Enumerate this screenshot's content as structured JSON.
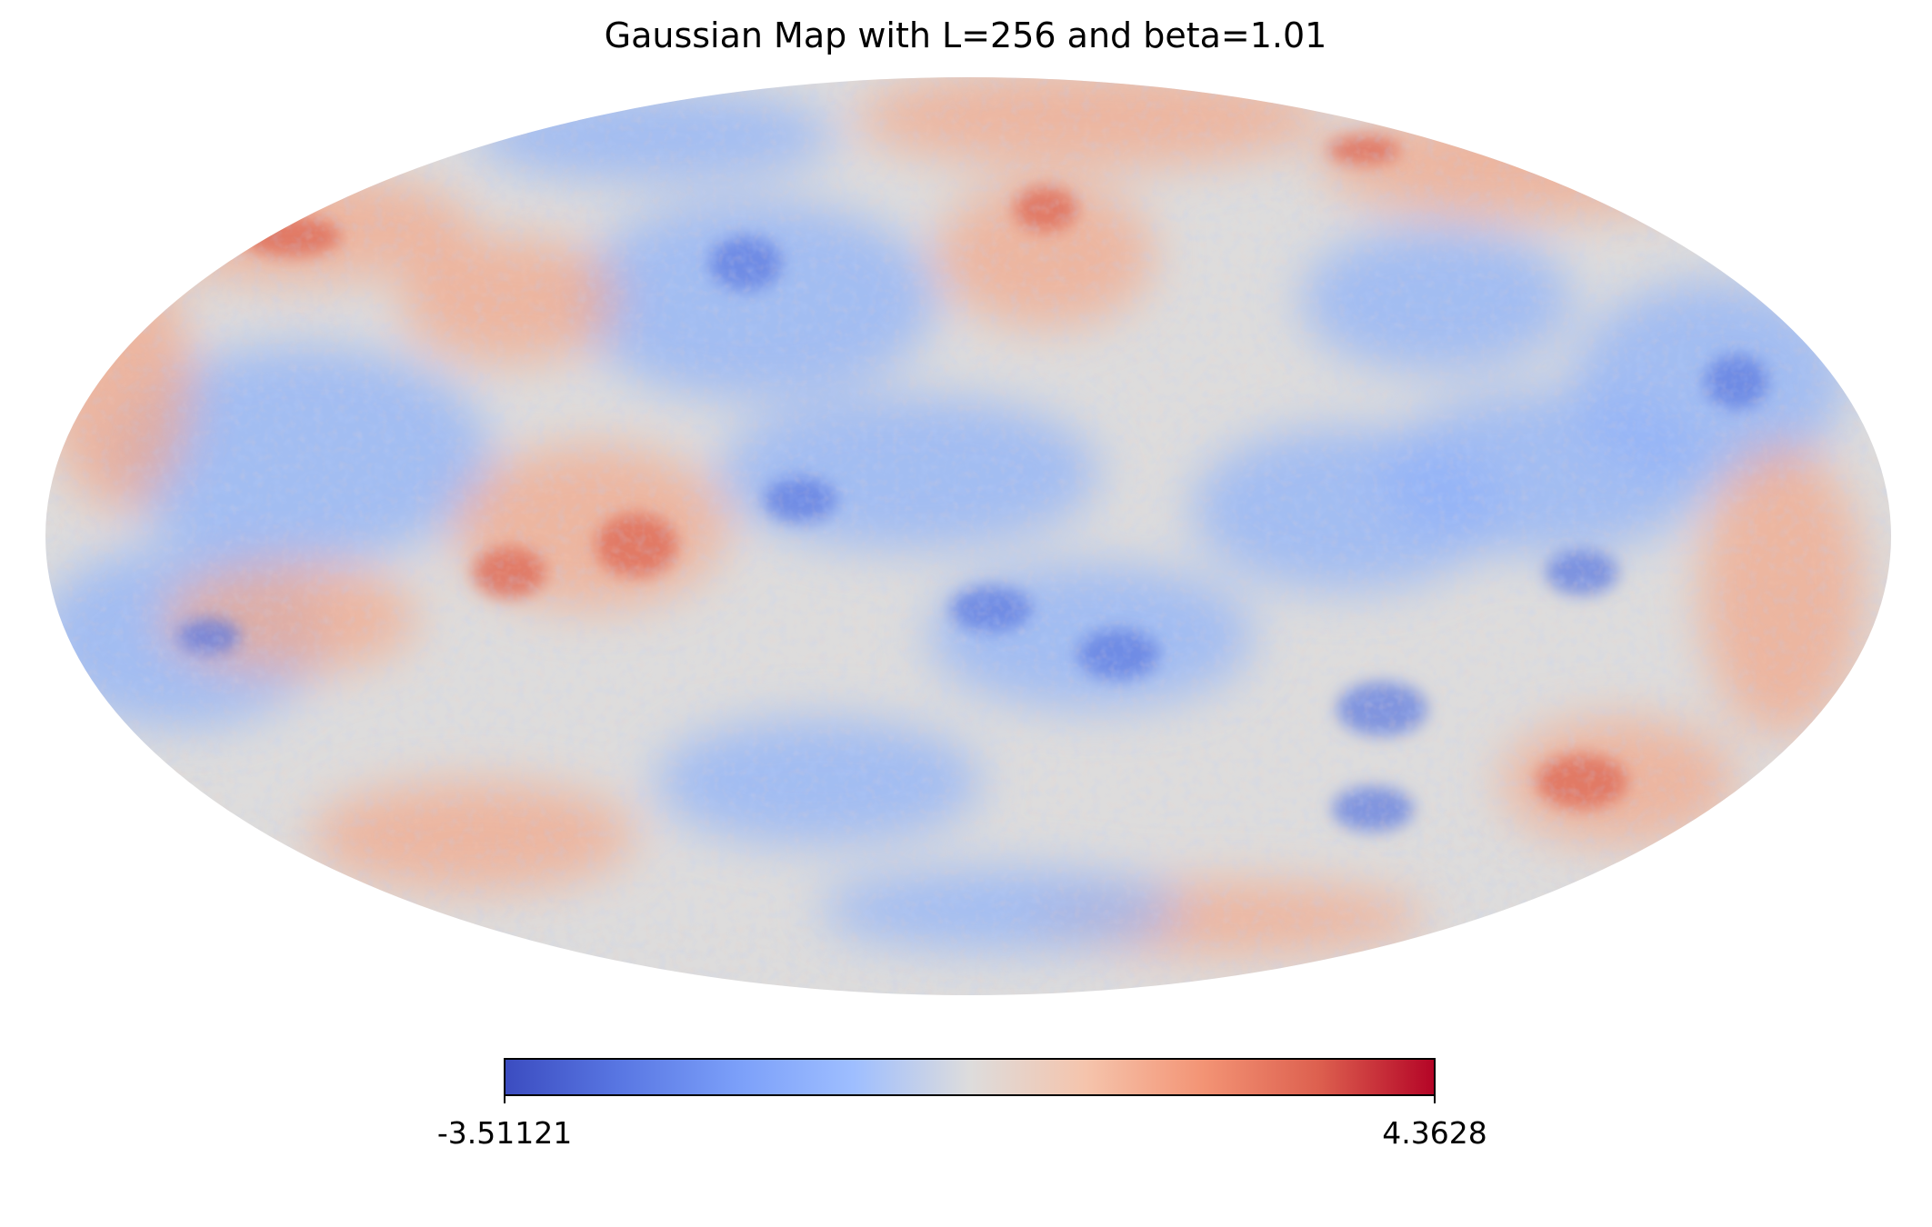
{
  "chart_data": {
    "type": "heatmap",
    "projection": "mollweide",
    "title": "Gaussian Map with L=256 and beta=1.01",
    "colormap": "coolwarm",
    "colorbar": {
      "orientation": "horizontal",
      "min": -3.51121,
      "max": 4.3628,
      "min_label": "-3.51121",
      "max_label": "4.3628"
    },
    "colors": {
      "cold": "#3b4cc0",
      "neutral": "#dddcdc",
      "hot": "#b40426"
    }
  }
}
